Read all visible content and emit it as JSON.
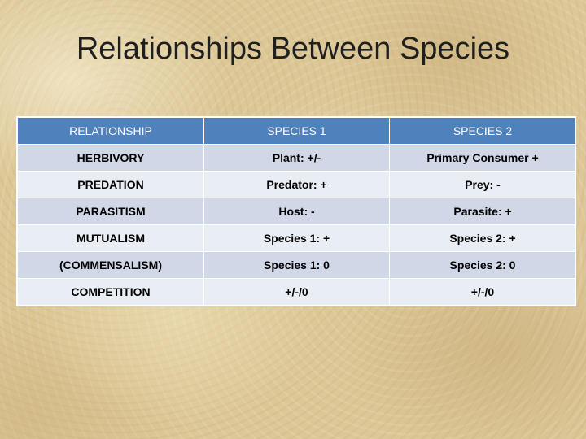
{
  "slide": {
    "title": "Relationships Between Species"
  },
  "table": {
    "headers": [
      "RELATIONSHIP",
      "SPECIES 1",
      "SPECIES 2"
    ],
    "rows": [
      [
        "HERBIVORY",
        "Plant: +/-",
        "Primary Consumer +"
      ],
      [
        "PREDATION",
        "Predator: +",
        "Prey: -"
      ],
      [
        "PARASITISM",
        "Host: -",
        "Parasite: +"
      ],
      [
        "MUTUALISM",
        "Species 1: +",
        "Species 2: +"
      ],
      [
        "(COMMENSALISM)",
        "Species 1: 0",
        "Species 2: 0"
      ],
      [
        "COMPETITION",
        "+/-/0",
        "+/-/0"
      ]
    ]
  },
  "colors": {
    "header_fill": "#4f81bd",
    "row_band_dark": "#d0d8e8",
    "row_band_light": "#e9edf4",
    "background": "#dcc796"
  }
}
